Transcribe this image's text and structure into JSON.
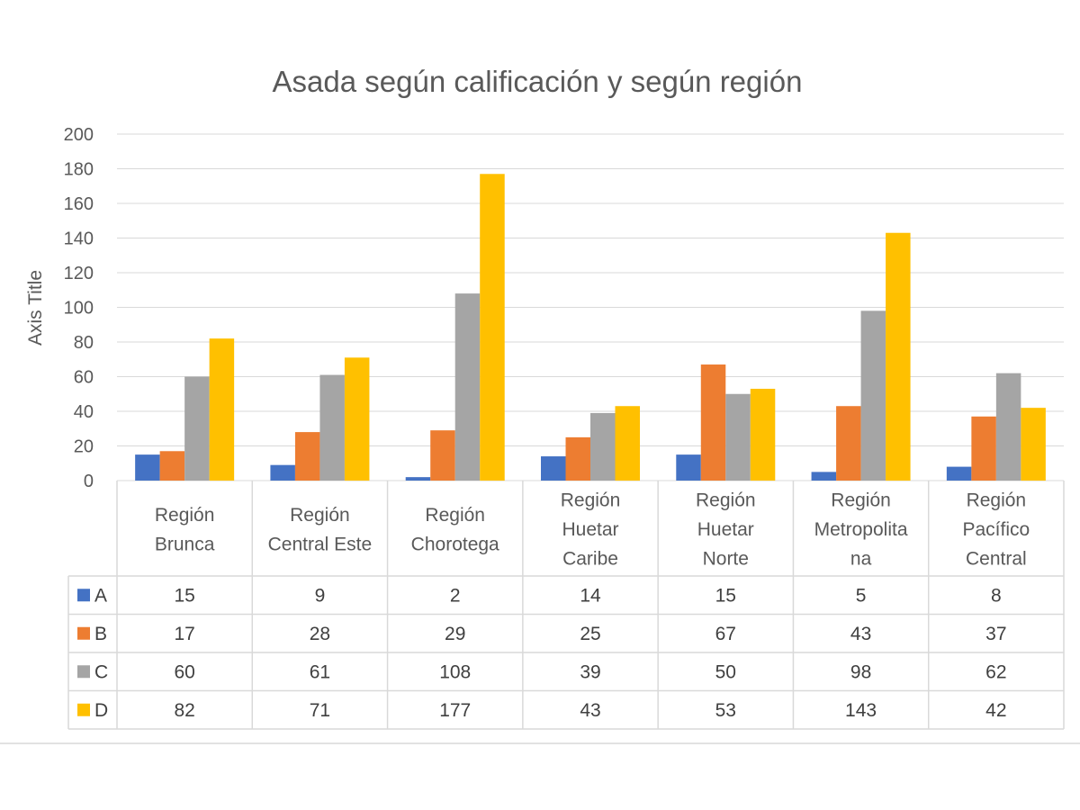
{
  "chart_data": {
    "type": "bar",
    "title": "Asada según calificación y según región",
    "ylabel": "Axis Title",
    "xlabel": "",
    "ylim": [
      0,
      200
    ],
    "ytick_step": 20,
    "grid": true,
    "legend": "data-table",
    "categories": [
      [
        "Región",
        "Brunca"
      ],
      [
        "Región",
        "Central Este"
      ],
      [
        "Región",
        "Chorotega"
      ],
      [
        "Región",
        "Huetar",
        "Caribe"
      ],
      [
        "Región",
        "Huetar",
        "Norte"
      ],
      [
        "Región",
        "Metropolita",
        "na"
      ],
      [
        "Región",
        "Pacífico",
        "Central"
      ]
    ],
    "series": [
      {
        "name": "A",
        "color": "#4472C4",
        "values": [
          15,
          9,
          2,
          14,
          15,
          5,
          8
        ]
      },
      {
        "name": "B",
        "color": "#ED7D31",
        "values": [
          17,
          28,
          29,
          25,
          67,
          43,
          37
        ]
      },
      {
        "name": "C",
        "color": "#A5A5A5",
        "values": [
          60,
          61,
          108,
          39,
          50,
          98,
          62
        ]
      },
      {
        "name": "D",
        "color": "#FFC000",
        "values": [
          82,
          71,
          177,
          43,
          53,
          143,
          42
        ]
      }
    ]
  }
}
